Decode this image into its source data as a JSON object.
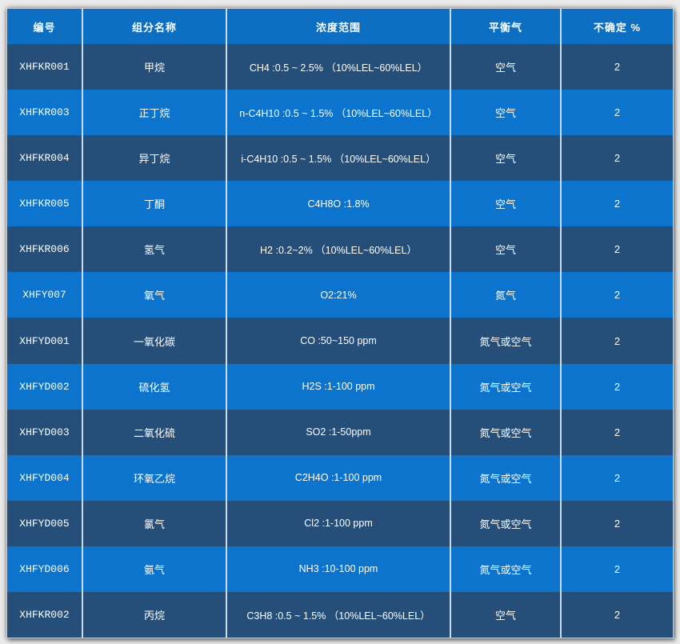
{
  "page": {
    "background": "#ebebeb"
  },
  "colors": {
    "header_bg": "#0d6fc2",
    "row_dark": "#254e78",
    "row_light": "#0c74cc",
    "text": "#ffffff",
    "separator": "#c8dcee"
  },
  "table": {
    "columns": [
      {
        "key": "id",
        "label": "编号"
      },
      {
        "key": "name",
        "label": "组分名称"
      },
      {
        "key": "range",
        "label": "浓度范围"
      },
      {
        "key": "balance",
        "label": "平衡气"
      },
      {
        "key": "uncertainty",
        "label": "不确定 %"
      }
    ],
    "rows": [
      {
        "id": "XHFKR001",
        "name": "甲烷",
        "range": "CH4 :0.5 ~ 2.5% （10%LEL~60%LEL）",
        "balance": "空气",
        "uncertainty": "2",
        "shade": "dark"
      },
      {
        "id": "XHFKR003",
        "name": "正丁烷",
        "range": "n-C4H10 :0.5 ~ 1.5% （10%LEL~60%LEL）",
        "balance": "空气",
        "uncertainty": "2",
        "shade": "light"
      },
      {
        "id": "XHFKR004",
        "name": "异丁烷",
        "range": "i-C4H10 :0.5 ~ 1.5% （10%LEL~60%LEL）",
        "balance": "空气",
        "uncertainty": "2",
        "shade": "dark"
      },
      {
        "id": "XHFKR005",
        "name": "丁酮",
        "range": "C4H8O :1.8%",
        "balance": "空气",
        "uncertainty": "2",
        "shade": "light"
      },
      {
        "id": "XHFKR006",
        "name": "氢气",
        "range": "H2 :0.2~2% （10%LEL~60%LEL）",
        "balance": "空气",
        "uncertainty": "2",
        "shade": "dark"
      },
      {
        "id": "XHFY007",
        "name": "氧气",
        "range": "O2:21%",
        "balance": "氮气",
        "uncertainty": "2",
        "shade": "light"
      },
      {
        "id": "XHFYD001",
        "name": "一氧化碳",
        "range": "CO :50~150 ppm",
        "balance": "氮气或空气",
        "uncertainty": "2",
        "shade": "dark"
      },
      {
        "id": "XHFYD002",
        "name": "硫化氢",
        "range": "H2S :1-100 ppm",
        "balance": "氮气或空气",
        "uncertainty": "2",
        "shade": "light"
      },
      {
        "id": "XHFYD003",
        "name": "二氧化硫",
        "range": "SO2 :1-50ppm",
        "balance": "氮气或空气",
        "uncertainty": "2",
        "shade": "dark"
      },
      {
        "id": "XHFYD004",
        "name": "环氧乙烷",
        "range": "C2H4O :1-100 ppm",
        "balance": "氮气或空气",
        "uncertainty": "2",
        "shade": "light"
      },
      {
        "id": "XHFYD005",
        "name": "氯气",
        "range": "Cl2 :1-100 ppm",
        "balance": "氮气或空气",
        "uncertainty": "2",
        "shade": "dark"
      },
      {
        "id": "XHFYD006",
        "name": "氨气",
        "range": "NH3 :10-100 ppm",
        "balance": "氮气或空气",
        "uncertainty": "2",
        "shade": "light"
      },
      {
        "id": "XHFKR002",
        "name": "丙烷",
        "range": "C3H8 :0.5 ~ 1.5% （10%LEL~60%LEL）",
        "balance": "空气",
        "uncertainty": "2",
        "shade": "dark"
      }
    ]
  }
}
